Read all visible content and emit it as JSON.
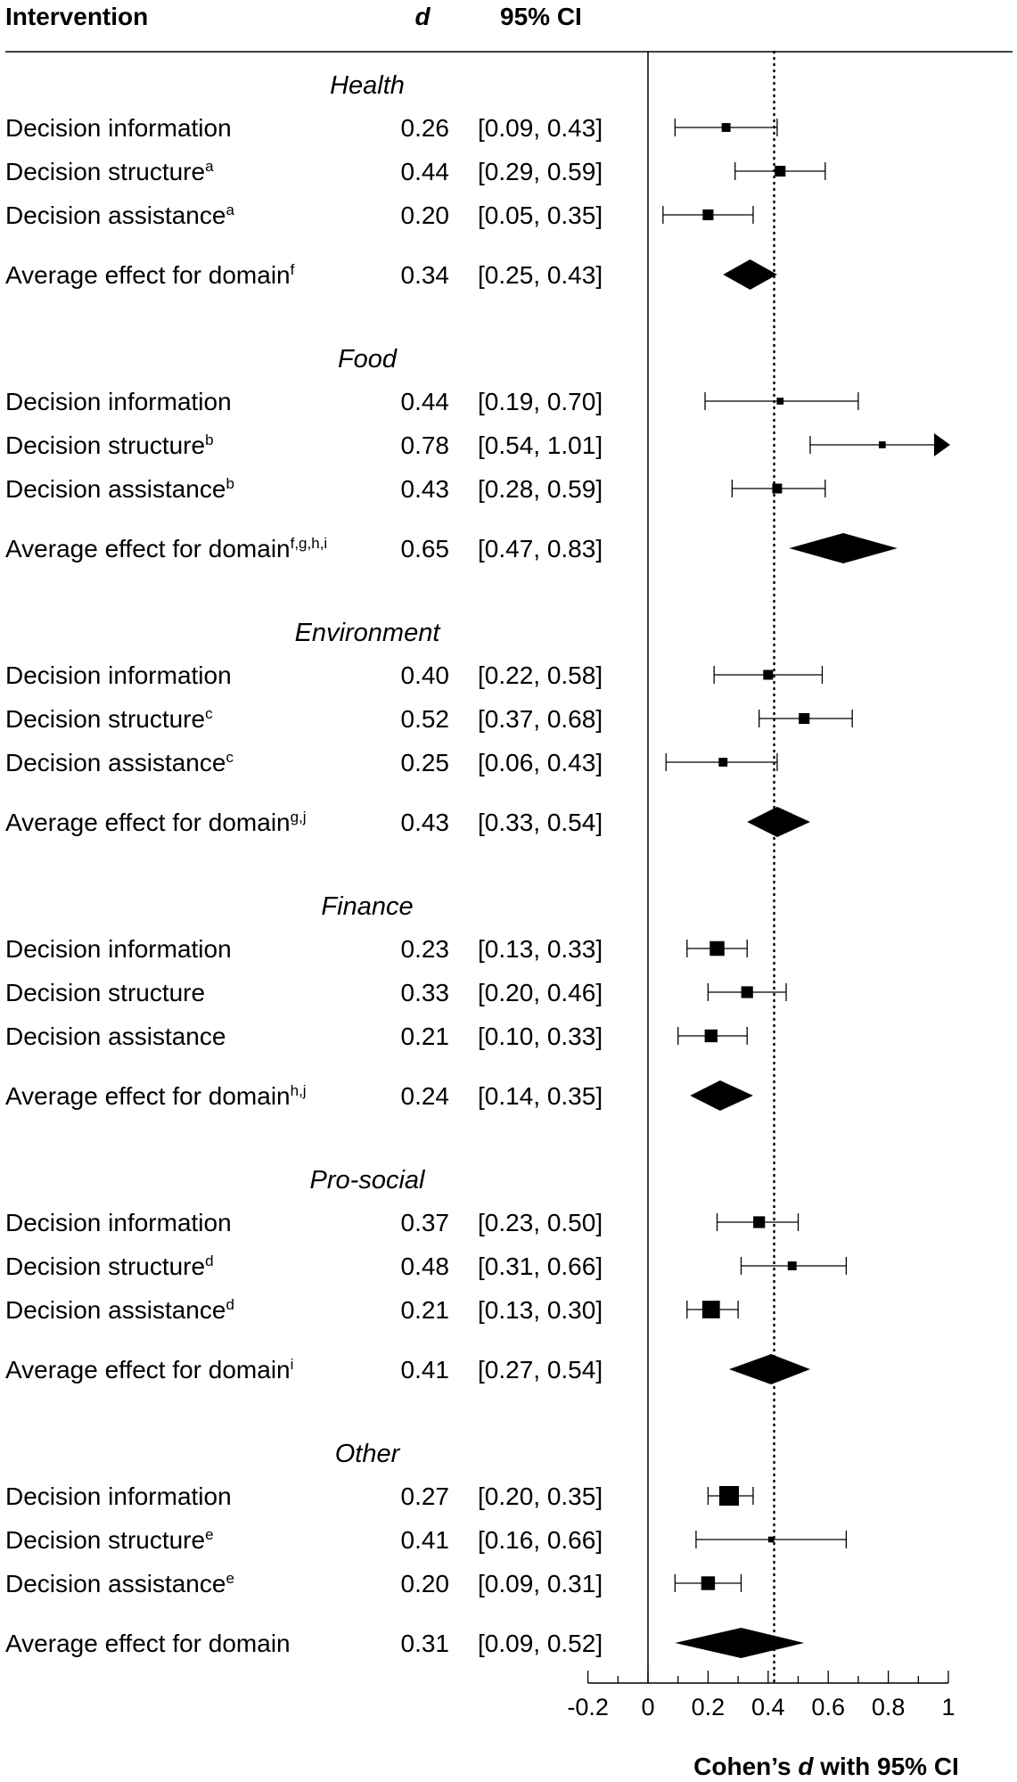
{
  "header": {
    "intervention": "Intervention",
    "d": "d",
    "ci": "95% CI"
  },
  "chart_data": {
    "type": "forest",
    "xlabel_pre": "Cohen’s ",
    "xlabel_italic": "d",
    "xlabel_post": " with 95% CI",
    "xlim": [
      -0.2,
      1.0
    ],
    "xticks": [
      "-0.2",
      "0",
      "0.2",
      "0.4",
      "0.6",
      "0.8",
      "1"
    ],
    "reference_line": 0,
    "dotted_line": 0.42,
    "groups": [
      {
        "domain": "Health",
        "rows": [
          {
            "label": "Decision information",
            "sup": "",
            "d": 0.26,
            "d_text": "0.26",
            "ci_text": "[0.09, 0.43]",
            "lo": 0.09,
            "hi": 0.43,
            "kind": "study",
            "weight": 0.9
          },
          {
            "label": "Decision structure",
            "sup": "a",
            "d": 0.44,
            "d_text": "0.44",
            "ci_text": "[0.29, 0.59]",
            "lo": 0.29,
            "hi": 0.59,
            "kind": "study",
            "weight": 1.1
          },
          {
            "label": "Decision assistance",
            "sup": "a",
            "d": 0.2,
            "d_text": "0.20",
            "ci_text": "[0.05, 0.35]",
            "lo": 0.05,
            "hi": 0.35,
            "kind": "study",
            "weight": 1.1
          },
          {
            "label": "Average effect for domain",
            "sup": "f",
            "d": 0.34,
            "d_text": "0.34",
            "ci_text": "[0.25, 0.43]",
            "lo": 0.25,
            "hi": 0.43,
            "kind": "summary"
          }
        ]
      },
      {
        "domain": "Food",
        "rows": [
          {
            "label": "Decision information",
            "sup": "",
            "d": 0.44,
            "d_text": "0.44",
            "ci_text": "[0.19, 0.70]",
            "lo": 0.19,
            "hi": 0.7,
            "kind": "study",
            "weight": 0.7
          },
          {
            "label": "Decision structure",
            "sup": "b",
            "d": 0.78,
            "d_text": "0.78",
            "ci_text": "[0.54, 1.01]",
            "lo": 0.54,
            "hi": 1.01,
            "kind": "study",
            "weight": 0.7,
            "arrow": true
          },
          {
            "label": "Decision assistance",
            "sup": "b",
            "d": 0.43,
            "d_text": "0.43",
            "ci_text": "[0.28, 0.59]",
            "lo": 0.28,
            "hi": 0.59,
            "kind": "study",
            "weight": 1.0
          },
          {
            "label": "Average effect for domain",
            "sup": "f,g,h,i",
            "d": 0.65,
            "d_text": "0.65",
            "ci_text": "[0.47, 0.83]",
            "lo": 0.47,
            "hi": 0.83,
            "kind": "summary"
          }
        ]
      },
      {
        "domain": "Environment",
        "rows": [
          {
            "label": "Decision information",
            "sup": "",
            "d": 0.4,
            "d_text": "0.40",
            "ci_text": "[0.22, 0.58]",
            "lo": 0.22,
            "hi": 0.58,
            "kind": "study",
            "weight": 1.0
          },
          {
            "label": "Decision structure",
            "sup": "c",
            "d": 0.52,
            "d_text": "0.52",
            "ci_text": "[0.37, 0.68]",
            "lo": 0.37,
            "hi": 0.68,
            "kind": "study",
            "weight": 1.1
          },
          {
            "label": "Decision assistance",
            "sup": "c",
            "d": 0.25,
            "d_text": "0.25",
            "ci_text": "[0.06, 0.43]",
            "lo": 0.06,
            "hi": 0.43,
            "kind": "study",
            "weight": 0.9
          },
          {
            "label": "Average effect for domain",
            "sup": "g,j",
            "d": 0.43,
            "d_text": "0.43",
            "ci_text": "[0.33, 0.54]",
            "lo": 0.33,
            "hi": 0.54,
            "kind": "summary"
          }
        ]
      },
      {
        "domain": "Finance",
        "rows": [
          {
            "label": "Decision information",
            "sup": "",
            "d": 0.23,
            "d_text": "0.23",
            "ci_text": "[0.13, 0.33]",
            "lo": 0.13,
            "hi": 0.33,
            "kind": "study",
            "weight": 1.5
          },
          {
            "label": "Decision structure",
            "sup": "",
            "d": 0.33,
            "d_text": "0.33",
            "ci_text": "[0.20, 0.46]",
            "lo": 0.2,
            "hi": 0.46,
            "kind": "study",
            "weight": 1.2
          },
          {
            "label": "Decision assistance",
            "sup": "",
            "d": 0.21,
            "d_text": "0.21",
            "ci_text": "[0.10, 0.33]",
            "lo": 0.1,
            "hi": 0.33,
            "kind": "study",
            "weight": 1.3
          },
          {
            "label": "Average effect for domain",
            "sup": "h,j",
            "d": 0.24,
            "d_text": "0.24",
            "ci_text": "[0.14, 0.35]",
            "lo": 0.14,
            "hi": 0.35,
            "kind": "summary"
          }
        ]
      },
      {
        "domain": "Pro-social",
        "rows": [
          {
            "label": "Decision information",
            "sup": "",
            "d": 0.37,
            "d_text": "0.37",
            "ci_text": "[0.23, 0.50]",
            "lo": 0.23,
            "hi": 0.5,
            "kind": "study",
            "weight": 1.2
          },
          {
            "label": "Decision structure",
            "sup": "d",
            "d": 0.48,
            "d_text": "0.48",
            "ci_text": "[0.31, 0.66]",
            "lo": 0.31,
            "hi": 0.66,
            "kind": "study",
            "weight": 0.9
          },
          {
            "label": "Decision assistance",
            "sup": "d",
            "d": 0.21,
            "d_text": "0.21",
            "ci_text": "[0.13, 0.30]",
            "lo": 0.13,
            "hi": 0.3,
            "kind": "study",
            "weight": 1.8
          },
          {
            "label": "Average effect for domain",
            "sup": "i",
            "d": 0.41,
            "d_text": "0.41",
            "ci_text": "[0.27, 0.54]",
            "lo": 0.27,
            "hi": 0.54,
            "kind": "summary"
          }
        ]
      },
      {
        "domain": "Other",
        "rows": [
          {
            "label": "Decision information",
            "sup": "",
            "d": 0.27,
            "d_text": "0.27",
            "ci_text": "[0.20, 0.35]",
            "lo": 0.2,
            "hi": 0.35,
            "kind": "study",
            "weight": 2.0
          },
          {
            "label": "Decision structure",
            "sup": "e",
            "d": 0.41,
            "d_text": "0.41",
            "ci_text": "[0.16, 0.66]",
            "lo": 0.16,
            "hi": 0.66,
            "kind": "study",
            "weight": 0.6
          },
          {
            "label": "Decision assistance",
            "sup": "e",
            "d": 0.2,
            "d_text": "0.20",
            "ci_text": "[0.09, 0.31]",
            "lo": 0.09,
            "hi": 0.31,
            "kind": "study",
            "weight": 1.4
          },
          {
            "label": "Average effect for domain",
            "sup": "",
            "d": 0.31,
            "d_text": "0.31",
            "ci_text": "[0.09, 0.52]",
            "lo": 0.09,
            "hi": 0.52,
            "kind": "summary"
          }
        ]
      }
    ]
  }
}
